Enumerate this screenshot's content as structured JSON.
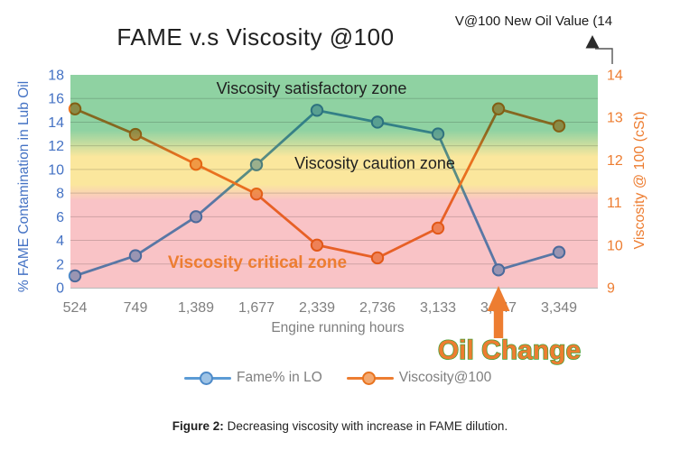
{
  "title": "FAME v.s Viscosity @100",
  "annotations": {
    "new_oil_value": "V@100 New Oil Value (14",
    "oil_change": "Oil Change"
  },
  "zones": {
    "satisfactory": "Viscosity satisfactory zone",
    "caution": "Viscosity caution zone",
    "critical": "Viscosity critical zone"
  },
  "chart_data": {
    "type": "line",
    "categories": [
      "524",
      "749",
      "1,389",
      "1,677",
      "2,339",
      "2,736",
      "3,133",
      "3,147",
      "3,349"
    ],
    "xlabel": "Engine running hours",
    "left_axis": {
      "label": "% FAME Contamination in Lub Oil",
      "min": 0,
      "max": 18,
      "ticks": [
        0,
        2,
        4,
        6,
        8,
        10,
        12,
        14,
        16,
        18
      ],
      "color": "#4472C4"
    },
    "right_axis": {
      "label": "Viscosity @ 100 (cSt)",
      "min": 9,
      "max": 14,
      "ticks": [
        9,
        10,
        11,
        12,
        13,
        14
      ],
      "color": "#ED7D31"
    },
    "series": [
      {
        "name": "Fame% in LO",
        "axis": "left",
        "color": "#5B9BD5",
        "marker_fill": "#9EC3E5",
        "marker_stroke": "#4E8AC8",
        "values": [
          1,
          2.7,
          6,
          10.4,
          15,
          14,
          13,
          1.5,
          3
        ]
      },
      {
        "name": "Viscosity@100",
        "axis": "right",
        "color": "#ED7D31",
        "marker_fill": "#F4A970",
        "marker_stroke": "#E8731F",
        "values": [
          13.2,
          12.6,
          11.9,
          11.2,
          10,
          9.7,
          10.4,
          13.2,
          12.8
        ]
      }
    ],
    "zone_colors": {
      "satisfactory": "#8FD2A2",
      "caution": "#FBE79D",
      "critical": "#F9C3C6"
    },
    "grid": true,
    "legend_position": "bottom"
  },
  "caption": {
    "label": "Figure 2:",
    "text": " Decreasing viscosity with increase in FAME dilution."
  }
}
